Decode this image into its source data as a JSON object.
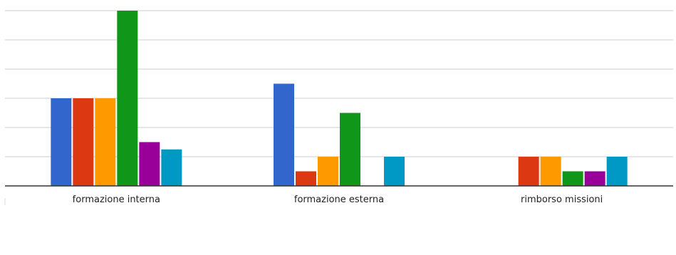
{
  "chart_data": {
    "type": "bar",
    "categories": [
      "formazione interna",
      "formazione esterna",
      "rimborso missioni"
    ],
    "series": [
      {
        "color": "#3366cc",
        "values": [
          6,
          7,
          0
        ]
      },
      {
        "color": "#dc3912",
        "values": [
          6,
          1,
          2
        ]
      },
      {
        "color": "#ff9900",
        "values": [
          6,
          2,
          2
        ]
      },
      {
        "color": "#109618",
        "values": [
          12,
          5,
          1
        ]
      },
      {
        "color": "#990099",
        "values": [
          3,
          0,
          1
        ]
      },
      {
        "color": "#0099c6",
        "values": [
          2.5,
          2,
          2
        ]
      }
    ],
    "ylim": [
      0,
      12
    ],
    "grid": true,
    "legend": "none"
  }
}
